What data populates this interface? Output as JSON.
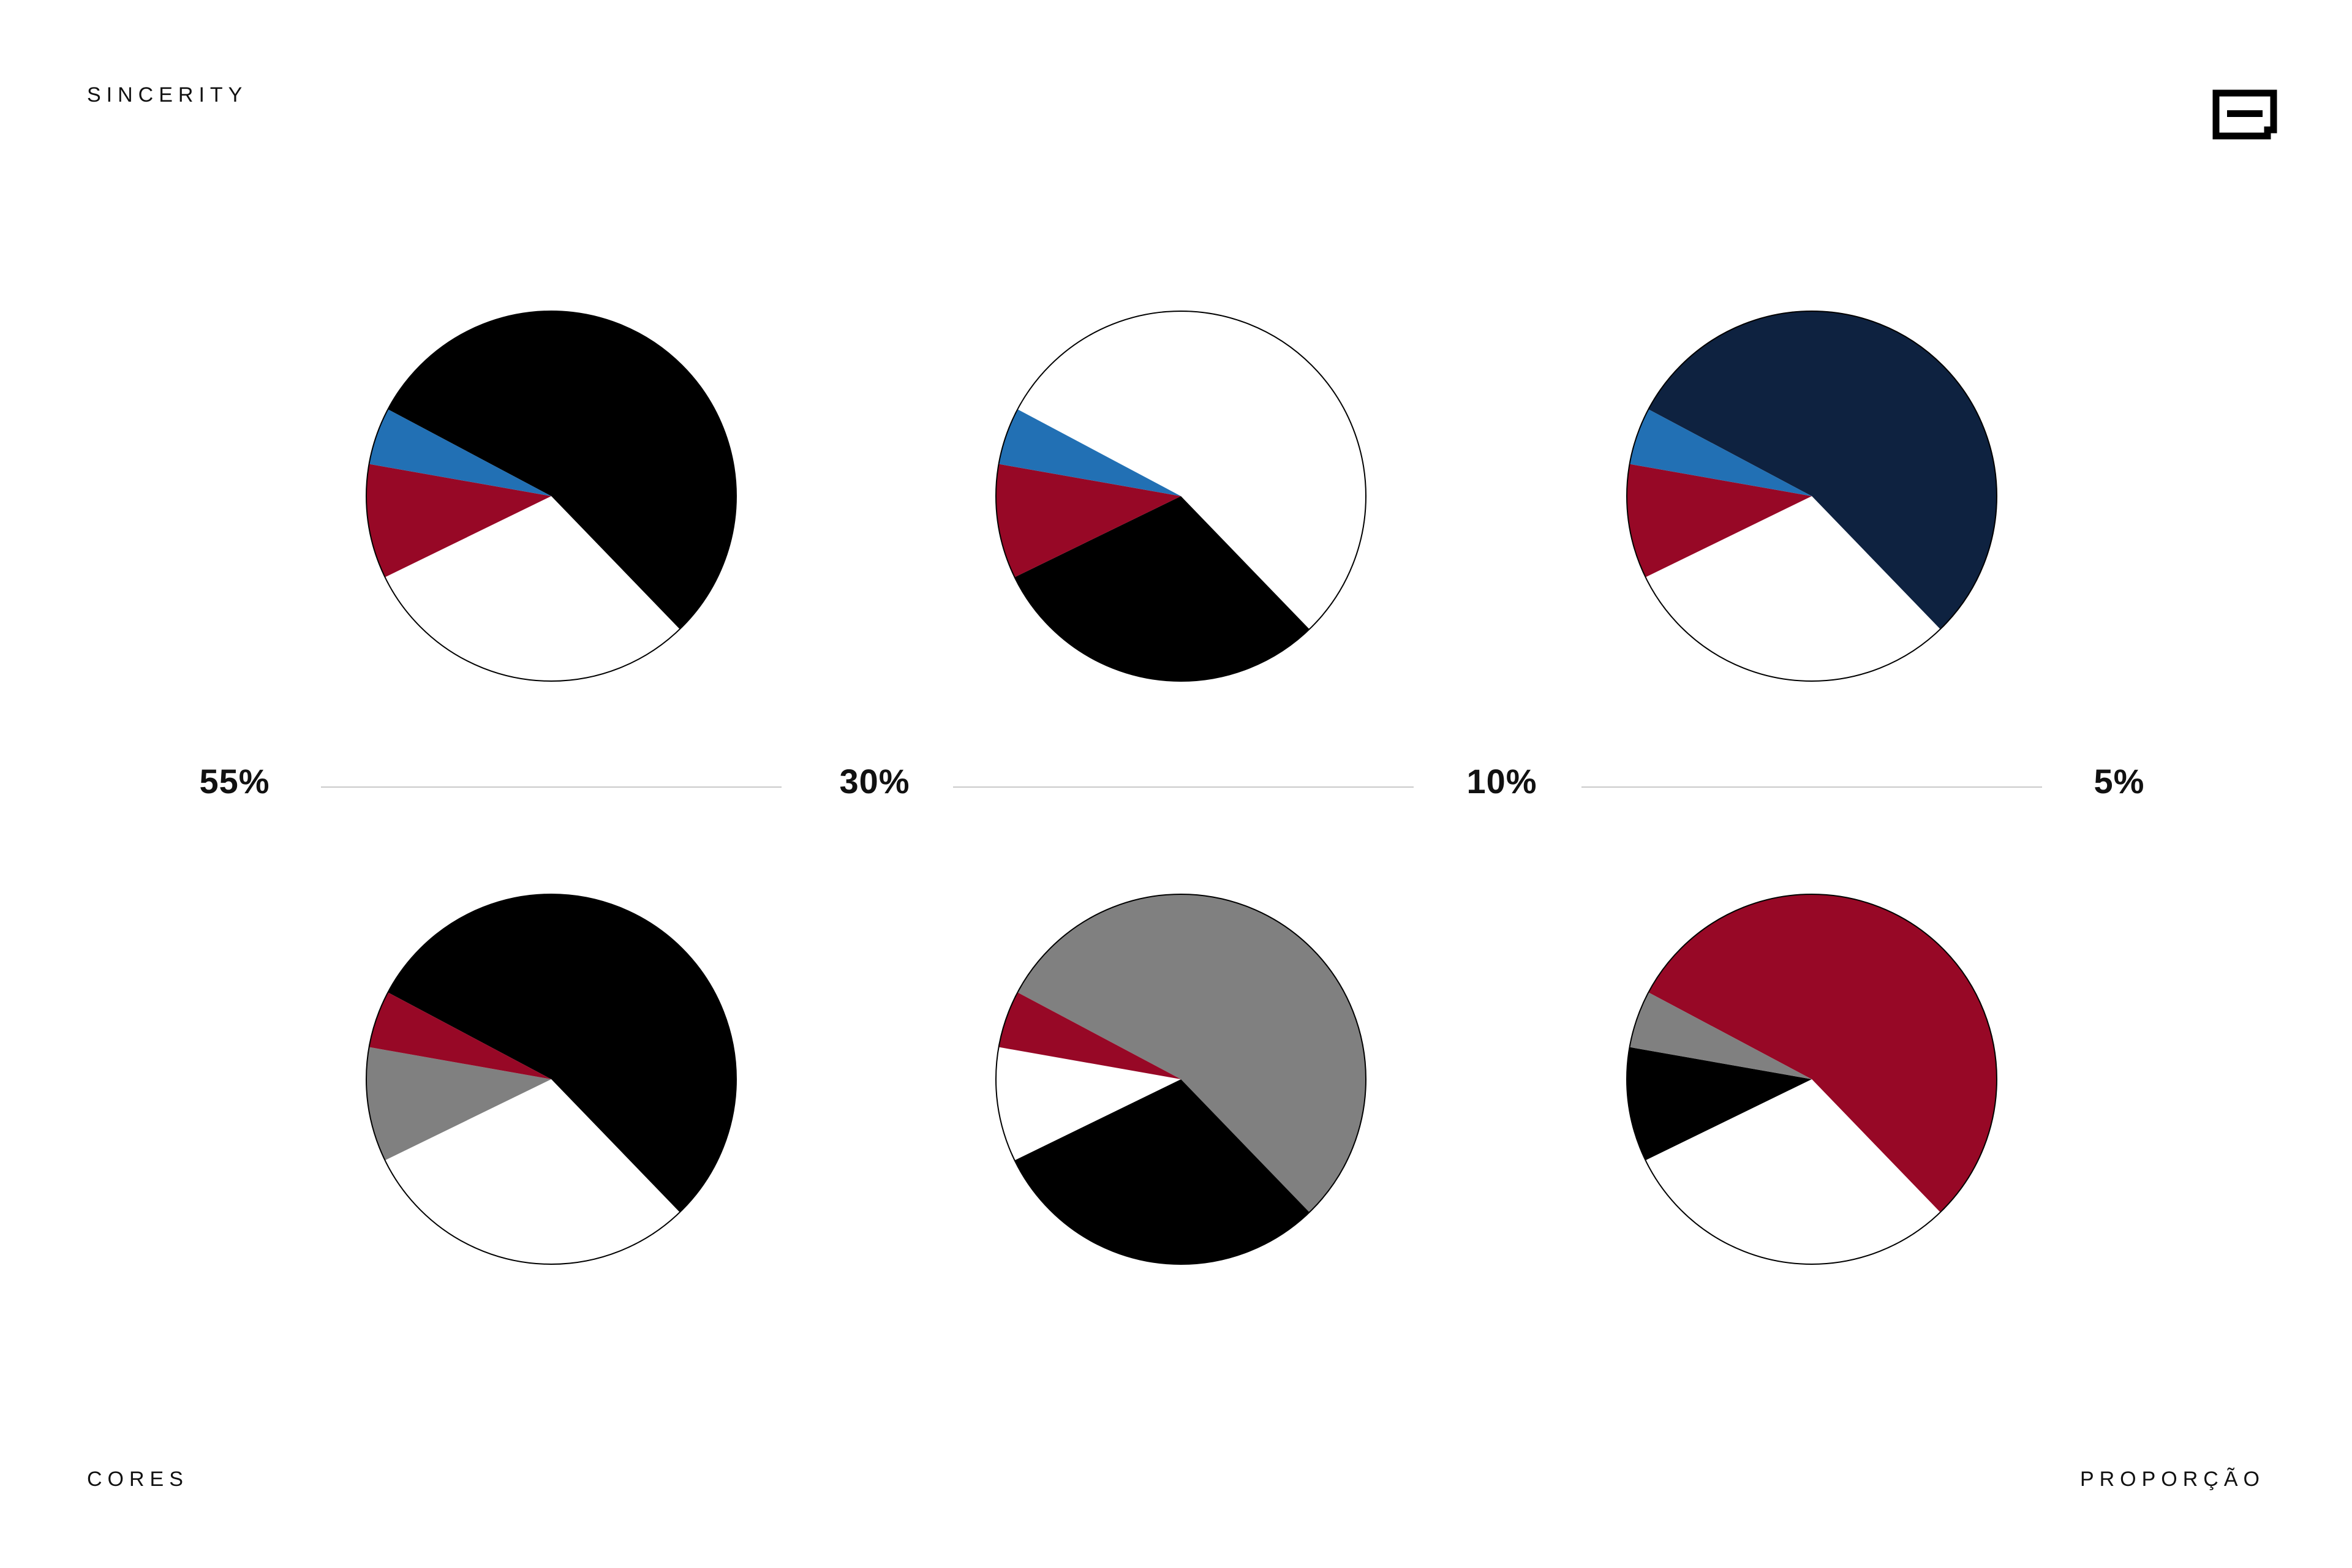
{
  "header": {
    "brand": "SINCERITY"
  },
  "footer": {
    "left": "CORES",
    "right": "PROPORÇÃO"
  },
  "logo": {
    "icon": "brand-logo-icon",
    "color": "#000000"
  },
  "proportions": {
    "labels": [
      "55%",
      "30%",
      "10%",
      "5%"
    ]
  },
  "chart_data": [
    {
      "type": "pie",
      "slices": [
        {
          "value": 55,
          "color": "#000000"
        },
        {
          "value": 30,
          "color": "#ffffff"
        },
        {
          "value": 10,
          "color": "#970826"
        },
        {
          "value": 5,
          "color": "#2270b4"
        }
      ]
    },
    {
      "type": "pie",
      "slices": [
        {
          "value": 55,
          "color": "#ffffff"
        },
        {
          "value": 30,
          "color": "#000000"
        },
        {
          "value": 10,
          "color": "#970826"
        },
        {
          "value": 5,
          "color": "#2270b4"
        }
      ]
    },
    {
      "type": "pie",
      "slices": [
        {
          "value": 55,
          "color": "#0e2240"
        },
        {
          "value": 30,
          "color": "#ffffff"
        },
        {
          "value": 10,
          "color": "#970826"
        },
        {
          "value": 5,
          "color": "#2270b4"
        }
      ]
    },
    {
      "type": "pie",
      "slices": [
        {
          "value": 55,
          "color": "#000000"
        },
        {
          "value": 30,
          "color": "#ffffff"
        },
        {
          "value": 10,
          "color": "#808080"
        },
        {
          "value": 5,
          "color": "#970826"
        }
      ]
    },
    {
      "type": "pie",
      "slices": [
        {
          "value": 55,
          "color": "#808080"
        },
        {
          "value": 30,
          "color": "#000000"
        },
        {
          "value": 10,
          "color": "#ffffff"
        },
        {
          "value": 5,
          "color": "#970826"
        }
      ]
    },
    {
      "type": "pie",
      "slices": [
        {
          "value": 55,
          "color": "#970826"
        },
        {
          "value": 30,
          "color": "#ffffff"
        },
        {
          "value": 10,
          "color": "#000000"
        },
        {
          "value": 5,
          "color": "#808080"
        }
      ]
    }
  ]
}
